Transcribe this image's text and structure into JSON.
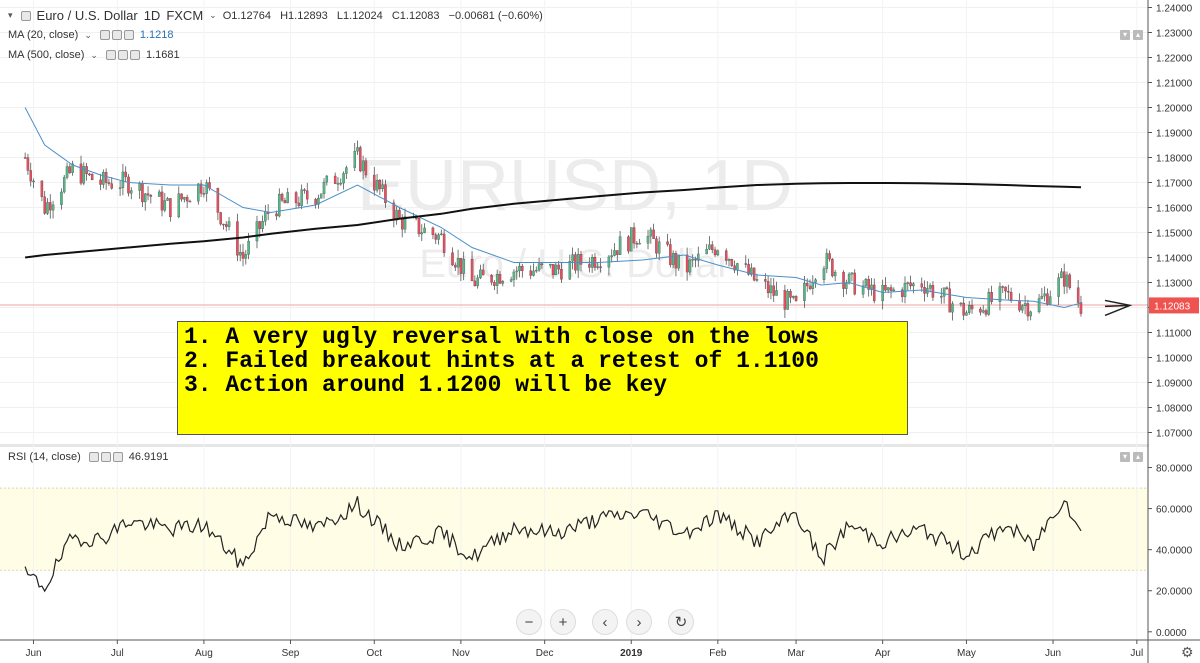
{
  "header": {
    "symbol": "Euro / U.S. Dollar",
    "timeframe": "1D",
    "exchange": "FXCM",
    "open": "O1.12764",
    "high": "H1.12893",
    "low": "L1.12024",
    "close": "C1.12083",
    "change": "−0.00681 (−0.60%)",
    "ma20_label": "MA (20, close)",
    "ma20_value": "1.1218",
    "ma500_label": "MA (500, close)",
    "ma500_value": "1.1681",
    "rsi_label": "RSI (14, close)",
    "rsi_value": "46.9191"
  },
  "watermark": {
    "symbol": "EURUSD, 1D",
    "name": "Euro / U.S. Dollar"
  },
  "annotation": [
    "1. A very ugly reversal with close on the lows",
    "2. Failed breakout hints at a retest of 1.1100",
    "3. Action around 1.1200 will be key"
  ],
  "colors": {
    "up": "#53b987",
    "down": "#eb4d5c",
    "ma20": "#4a90c8",
    "ma500": "#111111",
    "rsi_band": "#fffde6",
    "annotation_bg": "#ffff00"
  },
  "toolbar": {
    "zoom_out": "−",
    "zoom_in": "+",
    "prev": "‹",
    "next": "›",
    "reset": "↻",
    "settings": "⚙"
  },
  "chart_data": [
    {
      "type": "line",
      "title": "EURUSD, 1D",
      "price_last_label": "1.12083",
      "y_ticks": [
        "1.24000",
        "1.23000",
        "1.22000",
        "1.21000",
        "1.20000",
        "1.19000",
        "1.18000",
        "1.17000",
        "1.16000",
        "1.15000",
        "1.14000",
        "1.13000",
        "1.12000",
        "1.11000",
        "1.10000",
        "1.09000",
        "1.08000",
        "1.07000"
      ],
      "ylim": [
        1.067,
        1.243
      ],
      "x_ticks": [
        "Jun",
        "Jul",
        "Aug",
        "Sep",
        "Oct",
        "Nov",
        "Dec",
        "2019",
        "Feb",
        "Mar",
        "Apr",
        "May",
        "Jun",
        "Jul"
      ],
      "x": [
        "2018-05-29",
        "2018-06-05",
        "2018-06-15",
        "2018-06-25",
        "2018-07-05",
        "2018-07-20",
        "2018-08-01",
        "2018-08-15",
        "2018-08-25",
        "2018-09-10",
        "2018-09-25",
        "2018-10-10",
        "2018-10-25",
        "2018-11-05",
        "2018-11-20",
        "2018-12-05",
        "2018-12-20",
        "2019-01-05",
        "2019-01-20",
        "2019-02-01",
        "2019-02-15",
        "2019-03-01",
        "2019-03-10",
        "2019-03-20",
        "2019-04-01",
        "2019-04-15",
        "2019-05-01",
        "2019-05-15",
        "2019-05-25",
        "2019-06-05",
        "2019-06-11"
      ],
      "series": [
        {
          "name": "MA (20, close)",
          "values": [
            1.2,
            1.185,
            1.177,
            1.173,
            1.17,
            1.169,
            1.169,
            1.16,
            1.158,
            1.161,
            1.169,
            1.16,
            1.152,
            1.144,
            1.138,
            1.138,
            1.138,
            1.139,
            1.141,
            1.137,
            1.133,
            1.132,
            1.129,
            1.13,
            1.126,
            1.127,
            1.124,
            1.123,
            1.1225,
            1.12,
            1.1218
          ]
        },
        {
          "name": "MA (500, close)",
          "values": [
            1.14,
            1.141,
            1.142,
            1.143,
            1.144,
            1.1455,
            1.1465,
            1.148,
            1.1495,
            1.1515,
            1.153,
            1.1555,
            1.1575,
            1.1595,
            1.1615,
            1.163,
            1.1645,
            1.166,
            1.167,
            1.168,
            1.169,
            1.1695,
            1.1697,
            1.1698,
            1.1698,
            1.1697,
            1.1694,
            1.169,
            1.1686,
            1.1683,
            1.1681
          ]
        }
      ],
      "price_path": [
        1.18,
        1.16,
        1.175,
        1.17,
        1.17,
        1.16,
        1.17,
        1.14,
        1.16,
        1.165,
        1.18,
        1.155,
        1.148,
        1.13,
        1.135,
        1.135,
        1.14,
        1.15,
        1.135,
        1.145,
        1.13,
        1.12,
        1.14,
        1.13,
        1.125,
        1.13,
        1.118,
        1.125,
        1.12,
        1.132,
        1.1208
      ]
    },
    {
      "type": "line",
      "title": "RSI (14, close)",
      "y_ticks": [
        "80.0000",
        "60.0000",
        "40.0000",
        "20.0000",
        "0.0000"
      ],
      "ylim": [
        -4,
        90
      ],
      "band": [
        30,
        70
      ],
      "x": [
        "2018-05-29",
        "2018-06-05",
        "2018-06-15",
        "2018-06-25",
        "2018-07-05",
        "2018-07-20",
        "2018-08-01",
        "2018-08-15",
        "2018-08-25",
        "2018-09-10",
        "2018-09-25",
        "2018-10-10",
        "2018-10-25",
        "2018-11-05",
        "2018-11-20",
        "2018-12-05",
        "2018-12-20",
        "2019-01-05",
        "2019-01-20",
        "2019-02-01",
        "2019-02-15",
        "2019-03-01",
        "2019-03-10",
        "2019-03-20",
        "2019-04-01",
        "2019-04-15",
        "2019-05-01",
        "2019-05-15",
        "2019-05-25",
        "2019-06-05",
        "2019-06-11"
      ],
      "series": [
        {
          "name": "RSI (14, close)",
          "values": [
            28,
            22,
            46,
            45,
            54,
            50,
            52,
            32,
            58,
            50,
            62,
            42,
            48,
            36,
            51,
            48,
            55,
            58,
            48,
            57,
            44,
            58,
            35,
            52,
            44,
            50,
            38,
            52,
            42,
            66,
            47
          ]
        }
      ]
    }
  ]
}
